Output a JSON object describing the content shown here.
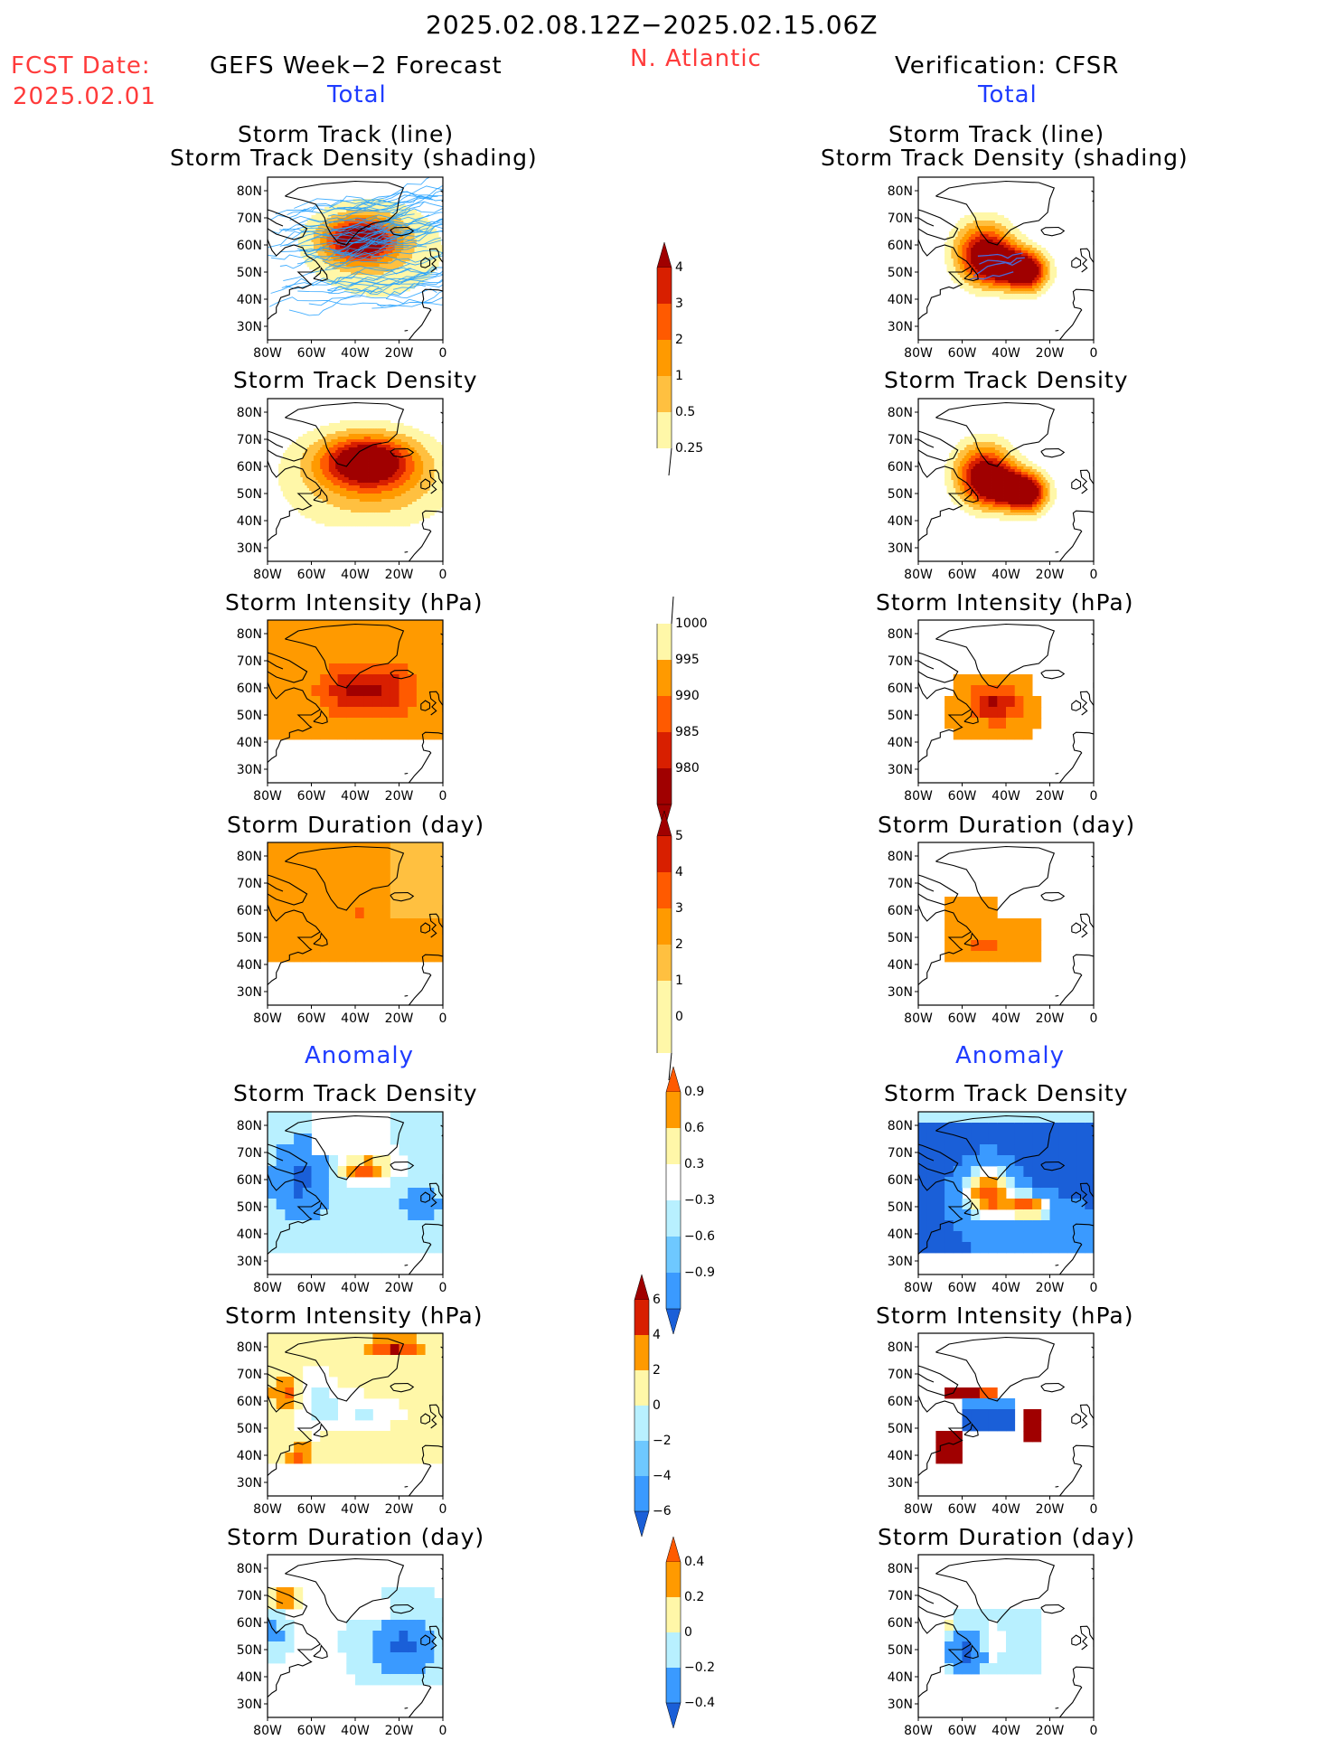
{
  "header": {
    "date_range": "2025.02.08.12Z−2025.02.15.06Z",
    "fcst_label": "FCST Date:",
    "fcst_date": "2025.02.01",
    "forecast_title": "GEFS Week−2 Forecast",
    "region": "N. Atlantic",
    "verification_title": "Verification: CFSR",
    "total_label": "Total",
    "anomaly_label": "Anomaly"
  },
  "panel_titles": {
    "track_line": "Storm Track (line)",
    "track_shading": "Storm Track Density (shading)",
    "density": "Storm Track Density",
    "intensity": "Storm Intensity (hPa)",
    "duration": "Storm Duration (day)"
  },
  "axes": {
    "lat_ticks": [
      "80N",
      "70N",
      "60N",
      "50N",
      "40N",
      "30N"
    ],
    "lon_ticks": [
      "80W",
      "60W",
      "40W",
      "20W",
      "0"
    ]
  },
  "colorbars": {
    "density_total": [
      "4",
      "3",
      "2",
      "1",
      "0.5",
      "0.25"
    ],
    "intensity_total": [
      "1000",
      "995",
      "990",
      "985",
      "980"
    ],
    "duration_total": [
      "5",
      "4",
      "3",
      "2",
      "1",
      "0"
    ],
    "density_anom": [
      "0.9",
      "0.6",
      "0.3",
      "−0.3",
      "−0.6",
      "−0.9"
    ],
    "intensity_anom": [
      "6",
      "4",
      "2",
      "0",
      "−2",
      "−4",
      "−6"
    ],
    "duration_anom": [
      "0.4",
      "0.2",
      "0",
      "−0.2",
      "−0.4"
    ]
  },
  "colors": {
    "dark_red": "#a00000",
    "red": "#d81f00",
    "orange_red": "#ff5a00",
    "orange": "#ff9a00",
    "light_orange": "#ffc040",
    "pale_yellow": "#fff7a8",
    "light_blue": "#b8f0ff",
    "mid_blue": "#6ec8ff",
    "blue": "#3a9aff",
    "dark_blue": "#1a5fd8",
    "track_line": "#22a0ff",
    "title_red": "#ff3b3b",
    "title_blue": "#1f3cff"
  },
  "chart_data": {
    "type": "heatmap",
    "description_of_grid": "Each panel: N. Atlantic map, lon 80W-0, lat 25N-85N; shading levels encoded 0 (none) upward",
    "panels": [
      {
        "id": "fc_total_track",
        "column": "GEFS Week-2 Forecast",
        "section": "Total",
        "field": "Storm Track (line) / Storm Track Density (shading)"
      },
      {
        "id": "fc_total_density",
        "column": "GEFS Week-2 Forecast",
        "section": "Total",
        "field": "Storm Track Density"
      },
      {
        "id": "fc_total_intensity",
        "column": "GEFS Week-2 Forecast",
        "section": "Total",
        "field": "Storm Intensity (hPa)"
      },
      {
        "id": "fc_total_duration",
        "column": "GEFS Week-2 Forecast",
        "section": "Total",
        "field": "Storm Duration (day)"
      },
      {
        "id": "fc_anom_density",
        "column": "GEFS Week-2 Forecast",
        "section": "Anomaly",
        "field": "Storm Track Density"
      },
      {
        "id": "fc_anom_intensity",
        "column": "GEFS Week-2 Forecast",
        "section": "Anomaly",
        "field": "Storm Intensity (hPa)"
      },
      {
        "id": "fc_anom_duration",
        "column": "GEFS Week-2 Forecast",
        "section": "Anomaly",
        "field": "Storm Duration (day)"
      },
      {
        "id": "vf_total_track",
        "column": "Verification: CFSR",
        "section": "Total",
        "field": "Storm Track (line) / Storm Track Density (shading)"
      },
      {
        "id": "vf_total_density",
        "column": "Verification: CFSR",
        "section": "Total",
        "field": "Storm Track Density"
      },
      {
        "id": "vf_total_intensity",
        "column": "Verification: CFSR",
        "section": "Total",
        "field": "Storm Intensity (hPa)"
      },
      {
        "id": "vf_total_duration",
        "column": "Verification: CFSR",
        "section": "Total",
        "field": "Storm Duration (day)"
      },
      {
        "id": "vf_anom_density",
        "column": "Verification: CFSR",
        "section": "Anomaly",
        "field": "Storm Track Density"
      },
      {
        "id": "vf_anom_intensity",
        "column": "Verification: CFSR",
        "section": "Anomaly",
        "field": "Storm Intensity (hPa)"
      },
      {
        "id": "vf_anom_duration",
        "column": "Verification: CFSR",
        "section": "Anomaly",
        "field": "Storm Duration (day)"
      }
    ],
    "lon_range": [
      -80,
      0
    ],
    "lat_range": [
      25,
      85
    ]
  }
}
